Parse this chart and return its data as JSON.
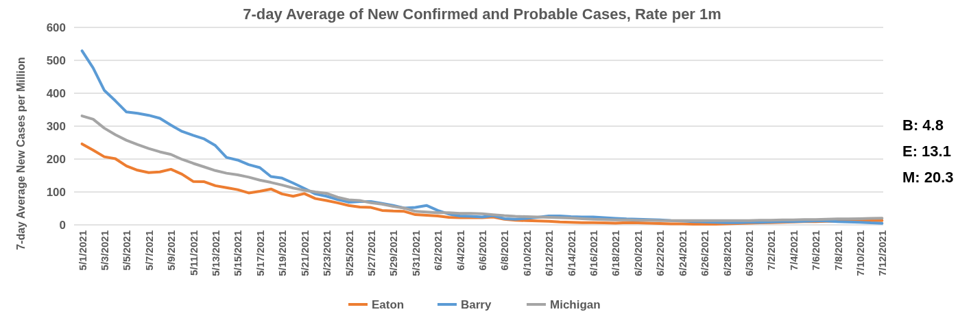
{
  "chart_data": {
    "type": "line",
    "title": "7-day Average of New Confirmed and Probable Cases, Rate per 1m",
    "ylabel": "7-day Average New Cases per Million",
    "categories": [
      "5/1/2021",
      null,
      "5/3/2021",
      null,
      "5/5/2021",
      null,
      "5/7/2021",
      null,
      "5/9/2021",
      null,
      "5/11/2021",
      null,
      "5/13/2021",
      null,
      "5/15/2021",
      null,
      "5/17/2021",
      null,
      "5/19/2021",
      null,
      "5/21/2021",
      null,
      "5/23/2021",
      null,
      "5/25/2021",
      null,
      "5/27/2021",
      null,
      "5/29/2021",
      null,
      "5/31/2021",
      null,
      "6/2/2021",
      null,
      "6/4/2021",
      null,
      "6/6/2021",
      null,
      "6/8/2021",
      null,
      "6/10/2021",
      null,
      "6/12/2021",
      null,
      "6/14/2021",
      null,
      "6/16/2021",
      null,
      "6/18/2021",
      null,
      "6/20/2021",
      null,
      "6/22/2021",
      null,
      "6/24/2021",
      null,
      "6/26/2021",
      null,
      "6/28/2021",
      null,
      "6/30/2021",
      null,
      "7/2/2021",
      null,
      "7/4/2021",
      null,
      "7/6/2021",
      null,
      "7/8/2021",
      null,
      "7/10/2021",
      null,
      "7/12/2021"
    ],
    "series": [
      {
        "name": "Eaton",
        "color": "#ed7d31",
        "values": [
          246,
          227,
          207,
          201,
          179,
          166,
          159,
          161,
          169,
          154,
          132,
          131,
          119,
          113,
          107,
          97,
          102,
          109,
          94,
          87,
          95,
          80,
          74,
          67,
          59,
          54,
          53,
          44,
          42,
          41,
          31,
          29,
          27,
          23,
          22,
          22,
          22,
          24,
          17,
          14,
          13,
          12,
          11,
          9,
          8,
          7,
          7,
          6,
          5,
          7,
          6,
          5,
          4,
          3,
          3,
          2,
          2,
          2,
          3,
          4,
          5,
          6,
          7,
          8,
          9,
          10,
          10,
          11,
          11,
          12,
          12,
          13,
          13.1
        ]
      },
      {
        "name": "Barry",
        "color": "#5b9bd5",
        "values": [
          529,
          477,
          409,
          377,
          343,
          339,
          333,
          324,
          303,
          284,
          272,
          261,
          241,
          205,
          197,
          183,
          174,
          147,
          142,
          127,
          111,
          94,
          87,
          77,
          69,
          71,
          71,
          65,
          59,
          51,
          53,
          59,
          44,
          33,
          27,
          26,
          24,
          28,
          19,
          17,
          20,
          23,
          27,
          27,
          25,
          24,
          24,
          22,
          20,
          18,
          17,
          16,
          15,
          13,
          12,
          10,
          9,
          8,
          7,
          7,
          8,
          8,
          9,
          10,
          10,
          11,
          12,
          12,
          10,
          9,
          8,
          6,
          4.8
        ]
      },
      {
        "name": "Michigan",
        "color": "#a5a5a5",
        "values": [
          331,
          321,
          294,
          274,
          257,
          244,
          232,
          222,
          214,
          199,
          187,
          176,
          165,
          157,
          152,
          145,
          136,
          129,
          121,
          112,
          105,
          100,
          96,
          84,
          76,
          74,
          67,
          63,
          56,
          51,
          41,
          39,
          37,
          37,
          35,
          35,
          34,
          31,
          28,
          26,
          25,
          24,
          23,
          22,
          21,
          19,
          17,
          16,
          15,
          15,
          14,
          14,
          13,
          13,
          13,
          13,
          13,
          13,
          13,
          13,
          13,
          14,
          14,
          15,
          15,
          16,
          16,
          17,
          18,
          18,
          19,
          20,
          20.3
        ]
      }
    ],
    "ylim": [
      0,
      600
    ],
    "yticks": [
      0,
      100,
      200,
      300,
      400,
      500,
      600
    ],
    "grid": "y",
    "legend": "bottom",
    "marker": "none",
    "line_style": "solid",
    "annotations": [
      "B: 4.8",
      "E: 13.1",
      "M: 20.3"
    ]
  }
}
